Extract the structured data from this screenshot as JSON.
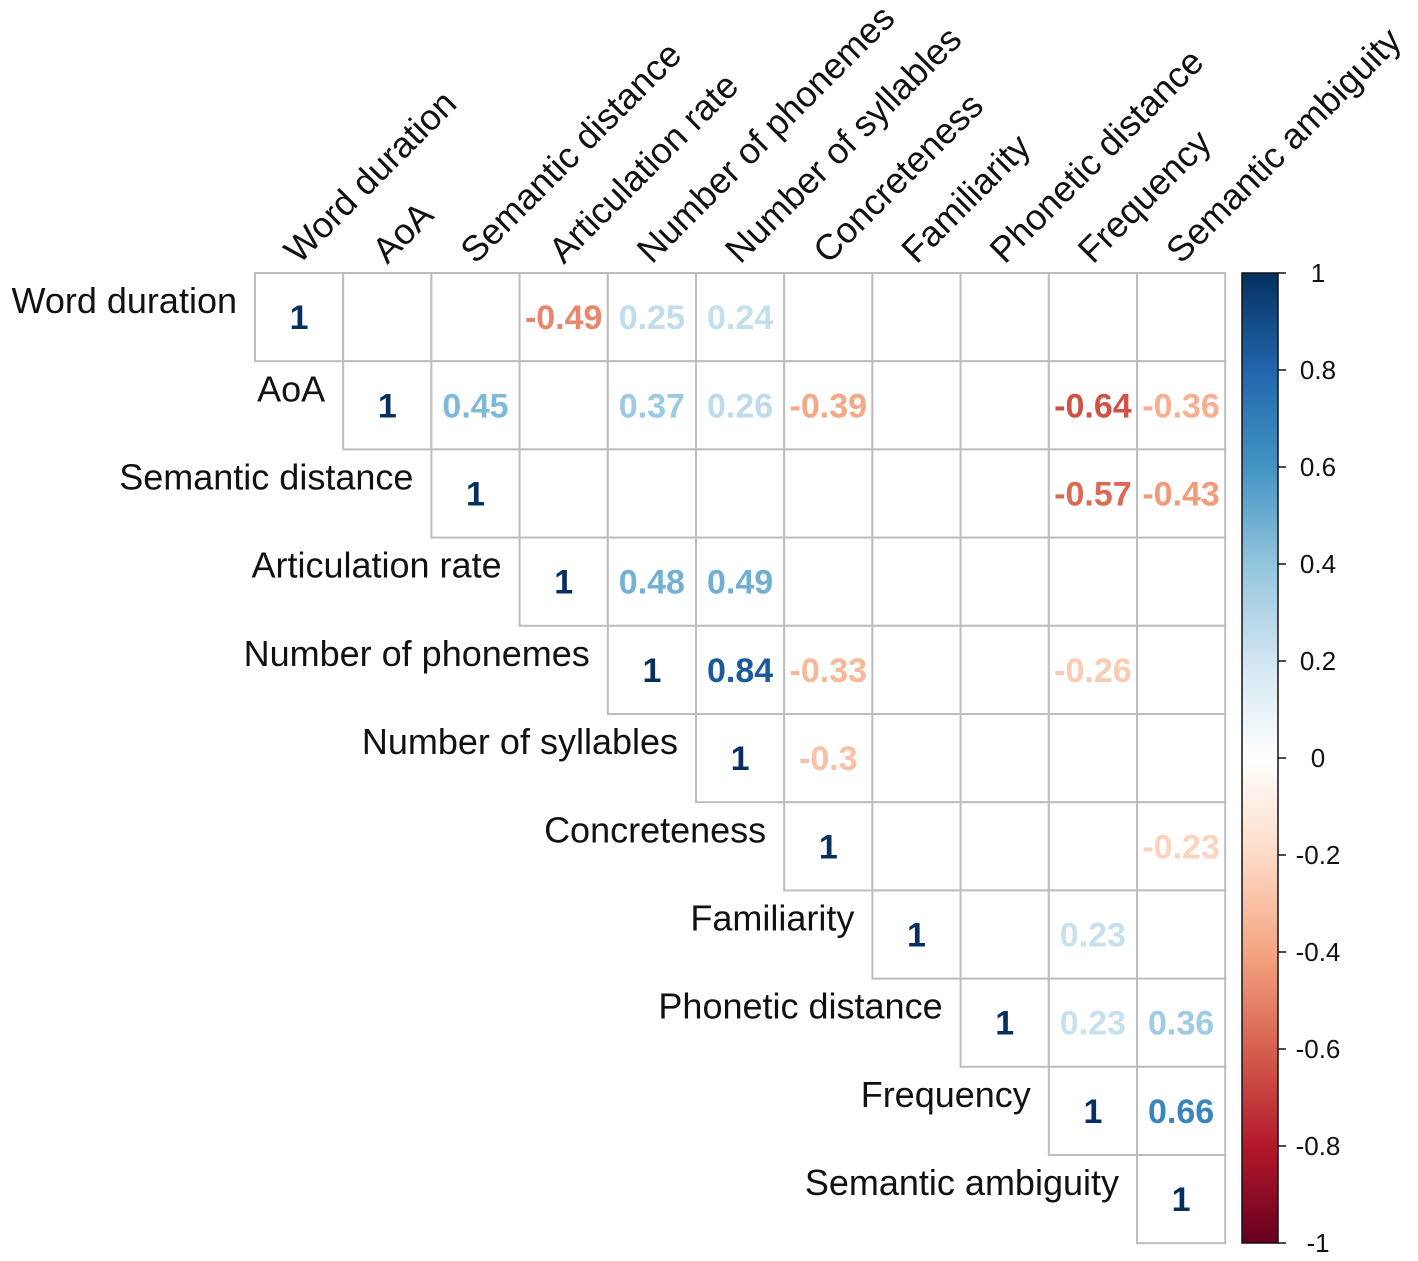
{
  "chart_data": {
    "type": "heatmap",
    "subtype": "upper-triangular correlation matrix (number method)",
    "variables": [
      "Word duration",
      "AoA",
      "Semantic distance",
      "Articulation rate",
      "Number of phonemes",
      "Number of syllables",
      "Concreteness",
      "Familiarity",
      "Phonetic distance",
      "Frequency",
      "Semantic ambiguity"
    ],
    "cells": [
      {
        "row": 0,
        "col": 0,
        "value": 1,
        "label": "1"
      },
      {
        "row": 0,
        "col": 3,
        "value": -0.49,
        "label": "-0.49"
      },
      {
        "row": 0,
        "col": 4,
        "value": 0.25,
        "label": "0.25"
      },
      {
        "row": 0,
        "col": 5,
        "value": 0.24,
        "label": "0.24"
      },
      {
        "row": 1,
        "col": 1,
        "value": 1,
        "label": "1"
      },
      {
        "row": 1,
        "col": 2,
        "value": 0.45,
        "label": "0.45"
      },
      {
        "row": 1,
        "col": 4,
        "value": 0.37,
        "label": "0.37"
      },
      {
        "row": 1,
        "col": 5,
        "value": 0.26,
        "label": "0.26"
      },
      {
        "row": 1,
        "col": 6,
        "value": -0.39,
        "label": "-0.39"
      },
      {
        "row": 1,
        "col": 9,
        "value": -0.64,
        "label": "-0.64"
      },
      {
        "row": 1,
        "col": 10,
        "value": -0.36,
        "label": "-0.36"
      },
      {
        "row": 2,
        "col": 2,
        "value": 1,
        "label": "1"
      },
      {
        "row": 2,
        "col": 9,
        "value": -0.57,
        "label": "-0.57"
      },
      {
        "row": 2,
        "col": 10,
        "value": -0.43,
        "label": "-0.43"
      },
      {
        "row": 3,
        "col": 3,
        "value": 1,
        "label": "1"
      },
      {
        "row": 3,
        "col": 4,
        "value": 0.48,
        "label": "0.48"
      },
      {
        "row": 3,
        "col": 5,
        "value": 0.49,
        "label": "0.49"
      },
      {
        "row": 4,
        "col": 4,
        "value": 1,
        "label": "1"
      },
      {
        "row": 4,
        "col": 5,
        "value": 0.84,
        "label": "0.84"
      },
      {
        "row": 4,
        "col": 6,
        "value": -0.33,
        "label": "-0.33"
      },
      {
        "row": 4,
        "col": 9,
        "value": -0.26,
        "label": "-0.26"
      },
      {
        "row": 5,
        "col": 5,
        "value": 1,
        "label": "1"
      },
      {
        "row": 5,
        "col": 6,
        "value": -0.3,
        "label": "-0.3"
      },
      {
        "row": 6,
        "col": 6,
        "value": 1,
        "label": "1"
      },
      {
        "row": 6,
        "col": 10,
        "value": -0.23,
        "label": "-0.23"
      },
      {
        "row": 7,
        "col": 7,
        "value": 1,
        "label": "1"
      },
      {
        "row": 7,
        "col": 9,
        "value": 0.23,
        "label": "0.23"
      },
      {
        "row": 8,
        "col": 8,
        "value": 1,
        "label": "1"
      },
      {
        "row": 8,
        "col": 9,
        "value": 0.23,
        "label": "0.23"
      },
      {
        "row": 8,
        "col": 10,
        "value": 0.36,
        "label": "0.36"
      },
      {
        "row": 9,
        "col": 9,
        "value": 1,
        "label": "1"
      },
      {
        "row": 9,
        "col": 10,
        "value": 0.66,
        "label": "0.66"
      },
      {
        "row": 10,
        "col": 10,
        "value": 1,
        "label": "1"
      }
    ],
    "colorbar": {
      "range": [
        -1,
        1
      ],
      "ticks": [
        "1",
        "0.8",
        "0.6",
        "0.4",
        "0.2",
        "0",
        "-0.2",
        "-0.4",
        "-0.6",
        "-0.8",
        "-1"
      ],
      "tick_values": [
        1,
        0.8,
        0.6,
        0.4,
        0.2,
        0,
        -0.2,
        -0.4,
        -0.6,
        -0.8,
        -1
      ]
    },
    "palette": {
      "stops": [
        "#67001f",
        "#b2182b",
        "#d6604d",
        "#f4a582",
        "#fddbc7",
        "#ffffff",
        "#d1e5f0",
        "#92c5de",
        "#4393c3",
        "#2166ac",
        "#053061"
      ],
      "cell_border": "#bdbdbd"
    }
  }
}
